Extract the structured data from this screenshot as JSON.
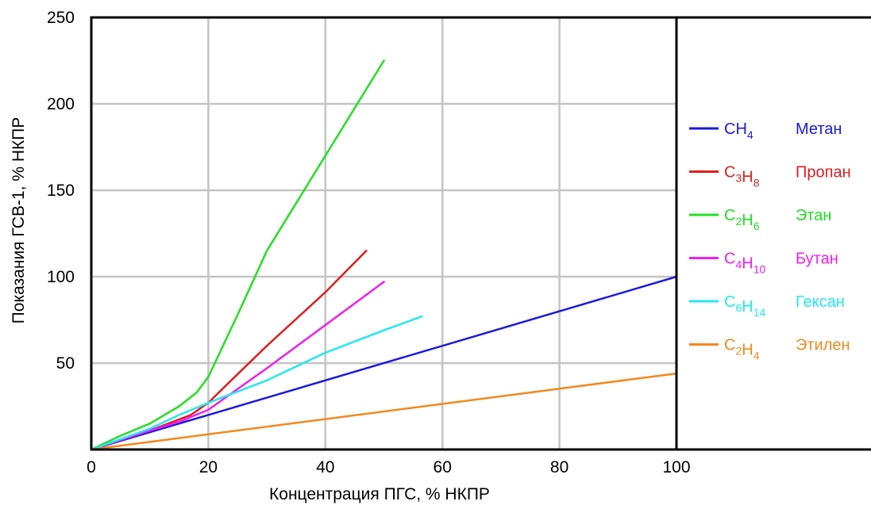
{
  "chart_data": {
    "type": "line",
    "title": "",
    "xlabel": "Концентрация ПГС, % НКПР",
    "ylabel": "Показания ГСВ-1, % НКПР",
    "xlim": [
      0,
      100
    ],
    "ylim": [
      0,
      250
    ],
    "xticks": [
      0,
      20,
      40,
      60,
      80,
      100
    ],
    "yticks": [
      50,
      100,
      150,
      200,
      250
    ],
    "grid": true,
    "legend_position": "right",
    "series": [
      {
        "name": "Метан",
        "formula": [
          [
            "C",
            "H"
          ],
          [
            "",
            "4"
          ]
        ],
        "color": "#1a1adf",
        "x": [
          0,
          100
        ],
        "y": [
          0,
          100
        ]
      },
      {
        "name": "Пропан",
        "formula": [
          [
            "C",
            "H"
          ],
          [
            "3",
            "8"
          ]
        ],
        "color": "#e01e1e",
        "x": [
          0,
          10,
          17,
          20,
          23,
          30,
          40,
          47
        ],
        "y": [
          0,
          11,
          20,
          27,
          37,
          60,
          91,
          115
        ]
      },
      {
        "name": "Этан",
        "formula": [
          [
            "C",
            "H"
          ],
          [
            "2",
            "6"
          ]
        ],
        "color": "#22e022",
        "x": [
          0,
          5,
          10,
          15,
          18,
          20,
          25,
          30,
          40,
          50
        ],
        "y": [
          0,
          8,
          15,
          25,
          33,
          42,
          78,
          115,
          170,
          225
        ]
      },
      {
        "name": "Бутан",
        "formula": [
          [
            "C",
            "H"
          ],
          [
            "4",
            "10"
          ]
        ],
        "color": "#f01ef0",
        "x": [
          0,
          10,
          15,
          20,
          30,
          40,
          50
        ],
        "y": [
          0,
          11,
          16,
          23,
          47,
          72,
          97
        ]
      },
      {
        "name": "Гексан",
        "formula": [
          [
            "C",
            "H"
          ],
          [
            "6",
            "14"
          ]
        ],
        "color": "#22e8f0",
        "x": [
          0,
          10,
          15,
          20,
          30,
          40,
          50,
          56.5
        ],
        "y": [
          0,
          12,
          20,
          27,
          40,
          56,
          69,
          77
        ]
      },
      {
        "name": "Этилен",
        "formula": [
          [
            "C",
            "H"
          ],
          [
            "2",
            "4"
          ]
        ],
        "color": "#f4881c",
        "x": [
          0,
          100
        ],
        "y": [
          0,
          44
        ]
      }
    ]
  }
}
